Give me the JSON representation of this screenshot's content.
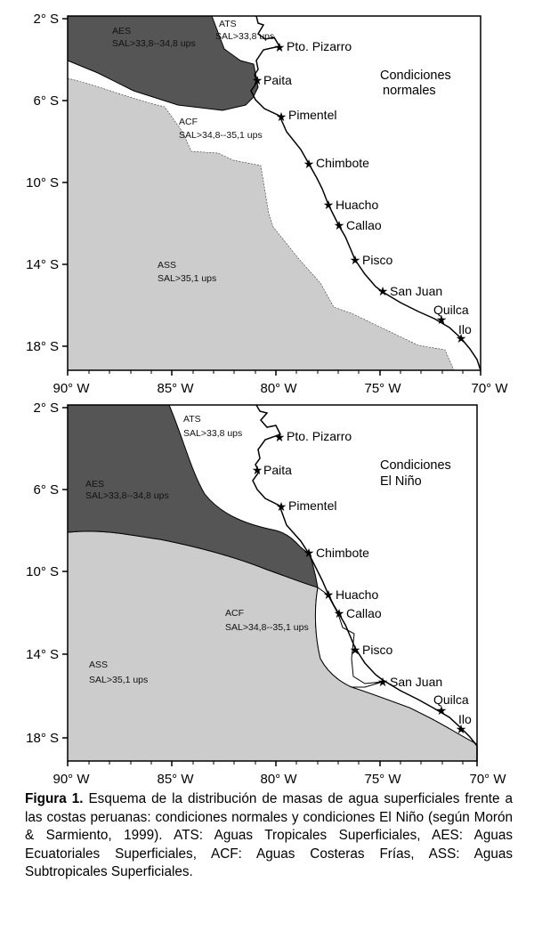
{
  "maps": [
    {
      "condition": [
        "Condiciones",
        "normales"
      ],
      "lat_ticks": [
        "2° S",
        "6° S",
        "10° S",
        "14° S",
        "18° S"
      ],
      "lon_ticks": [
        "90° W",
        "85° W",
        "80° W",
        "75° W",
        "70° W"
      ],
      "masses": [
        {
          "name": "AES",
          "desc": "SAL>33,8--34,8 ups"
        },
        {
          "name": "ATS",
          "desc": "SAL>33,8 ups"
        },
        {
          "name": "ACF",
          "desc": "SAL>34,8--35,1 ups"
        },
        {
          "name": "ASS",
          "desc": "SAL>35,1 ups"
        }
      ],
      "cities": [
        "Pto. Pizarro",
        "Paita",
        "Pimentel",
        "Chimbote",
        "Huacho",
        "Callao",
        "Pisco",
        "San Juan",
        "Quilca",
        "Ilo"
      ]
    },
    {
      "condition": [
        "Condiciones",
        "El Niño"
      ],
      "lat_ticks": [
        "2° S",
        "6° S",
        "10° S",
        "14° S",
        "18° S"
      ],
      "lon_ticks": [
        "90° W",
        "85° W",
        "80° W",
        "75° W",
        "70° W"
      ],
      "masses": [
        {
          "name": "ATS",
          "desc": "SAL>33,8 ups"
        },
        {
          "name": "AES",
          "desc": "SAL>33,8--34,8 ups"
        },
        {
          "name": "ACF",
          "desc": "SAL>34,8--35,1 ups"
        },
        {
          "name": "ASS",
          "desc": "SAL>35,1 ups"
        }
      ],
      "cities": [
        "Pto. Pizarro",
        "Paita",
        "Pimentel",
        "Chimbote",
        "Huacho",
        "Callao",
        "Pisco",
        "San Juan",
        "Quilca",
        "Ilo"
      ]
    }
  ],
  "colors": {
    "aes": "#555555",
    "ass": "#cccccc",
    "acf": "#ffffff",
    "ats": "#ffffff"
  },
  "caption": {
    "label": "Figura 1.",
    "text": " Esquema de la distribución de masas de agua superficiales frente a las costas peruanas: condiciones normales y condiciones El Niño (según Morón & Sarmiento, 1999). ATS: Aguas Tropicales Superficiales, AES: Aguas Ecuatoriales Superficiales, ACF: Aguas Costeras Frías, ASS: Aguas Subtropicales Superficiales."
  }
}
